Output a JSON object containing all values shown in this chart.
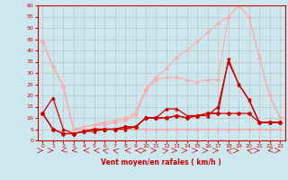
{
  "xlabel": "Vent moyen/en rafales ( km/h )",
  "background_color": "#cce8ee",
  "grid_color": "#bbbbbb",
  "xlim": [
    -0.5,
    23.5
  ],
  "ylim": [
    0,
    60
  ],
  "yticks": [
    0,
    5,
    10,
    15,
    20,
    25,
    30,
    35,
    40,
    45,
    50,
    55,
    60
  ],
  "xticks": [
    0,
    1,
    2,
    3,
    4,
    5,
    6,
    7,
    8,
    9,
    10,
    11,
    12,
    13,
    14,
    15,
    16,
    17,
    18,
    19,
    20,
    21,
    22,
    23
  ],
  "lines_light": [
    [
      44,
      33,
      24,
      5,
      5,
      5,
      5,
      5,
      5,
      5,
      5,
      5,
      5,
      5,
      5,
      5,
      5,
      5,
      5,
      5,
      5,
      5,
      5,
      5
    ],
    [
      44,
      33,
      24,
      5,
      6,
      7,
      7,
      8,
      9,
      11,
      22,
      27,
      28,
      28,
      27,
      26,
      27,
      27,
      55,
      60,
      55,
      37,
      20,
      10
    ],
    [
      44,
      33,
      24,
      5,
      6,
      7,
      8,
      9,
      10,
      12,
      23,
      28,
      32,
      37,
      40,
      44,
      48,
      52,
      55,
      60,
      55,
      37,
      20,
      10
    ]
  ],
  "lines_dark": [
    [
      12,
      19,
      5,
      3,
      4,
      4,
      5,
      5,
      5,
      6,
      10,
      10,
      14,
      14,
      11,
      11,
      11,
      15,
      35,
      25,
      18,
      8,
      8,
      8
    ],
    [
      12,
      5,
      3,
      3,
      4,
      5,
      5,
      5,
      6,
      6,
      10,
      10,
      10,
      11,
      10,
      11,
      12,
      12,
      36,
      25,
      18,
      8,
      8,
      8
    ],
    [
      12,
      5,
      3,
      3,
      4,
      5,
      5,
      5,
      6,
      6,
      10,
      10,
      10,
      11,
      10,
      11,
      12,
      12,
      12,
      12,
      12,
      8,
      8,
      8
    ]
  ],
  "light_color": "#ffaaaa",
  "dark_color": "#cc0000",
  "arrow_angles": [
    90,
    90,
    225,
    225,
    270,
    270,
    315,
    315,
    270,
    270,
    90,
    90,
    45,
    90,
    90,
    90,
    90,
    90,
    315,
    90,
    315,
    90,
    225,
    90
  ]
}
